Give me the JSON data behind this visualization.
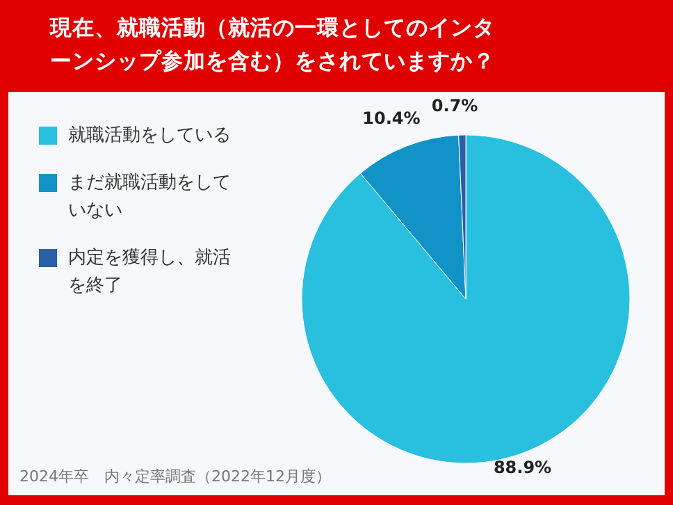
{
  "chart_data": {
    "type": "pie",
    "title": "現在、就職活動（就活の一環としてのインターンシップ参加を含む）をされていますか？",
    "categories": [
      "就職活動をしている",
      "まだ就職活動をしていない",
      "内定を獲得し、就活を終了"
    ],
    "values": [
      88.9,
      10.4,
      0.7
    ],
    "colors": [
      "#29c0e0",
      "#1293c7",
      "#2a5fa5"
    ],
    "value_labels": [
      "88.9%",
      "10.4%",
      "0.7%"
    ],
    "legend": "top left",
    "annotations": [
      "2024年卒　内々定率調査（2022年12月度）"
    ]
  }
}
